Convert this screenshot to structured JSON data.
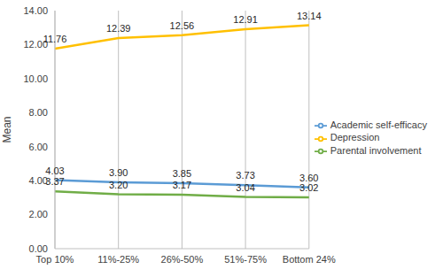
{
  "chart_data": {
    "type": "line",
    "y_label": "Mean",
    "categories": [
      "Top 10%",
      "11%-25%",
      "26%-50%",
      "51%-75%",
      "Bottom 24%"
    ],
    "series": [
      {
        "name": "Parental involvement",
        "color": "#70ad47",
        "values": [
          3.37,
          3.2,
          3.17,
          3.04,
          3.02
        ],
        "value_labels": [
          "3.37",
          "3.20",
          "3.17",
          "3.04",
          "3.02"
        ]
      },
      {
        "name": "Academic self-efficacy",
        "color": "#5b9bd5",
        "values": [
          4.03,
          3.9,
          3.85,
          3.73,
          3.6
        ],
        "value_labels": [
          "4.03",
          "3.90",
          "3.85",
          "3.73",
          "3.60"
        ]
      },
      {
        "name": "Depression",
        "color": "#ffc000",
        "values": [
          11.76,
          12.39,
          12.56,
          12.91,
          13.14
        ],
        "value_labels": [
          "11.76",
          "12.39",
          "12.56",
          "12.91",
          "13.14"
        ]
      }
    ],
    "ylim": [
      0,
      14
    ],
    "yticks": [
      {
        "value": 0,
        "label": "0.00"
      },
      {
        "value": 2,
        "label": "2.00"
      },
      {
        "value": 4,
        "label": "4.00"
      },
      {
        "value": 6,
        "label": "6.00"
      },
      {
        "value": 8,
        "label": "8.00"
      },
      {
        "value": 10,
        "label": "10.00"
      },
      {
        "value": 12,
        "label": "12.00"
      },
      {
        "value": 14,
        "label": "14.00"
      }
    ],
    "grid": true,
    "legend": "right",
    "data_labels": true
  }
}
